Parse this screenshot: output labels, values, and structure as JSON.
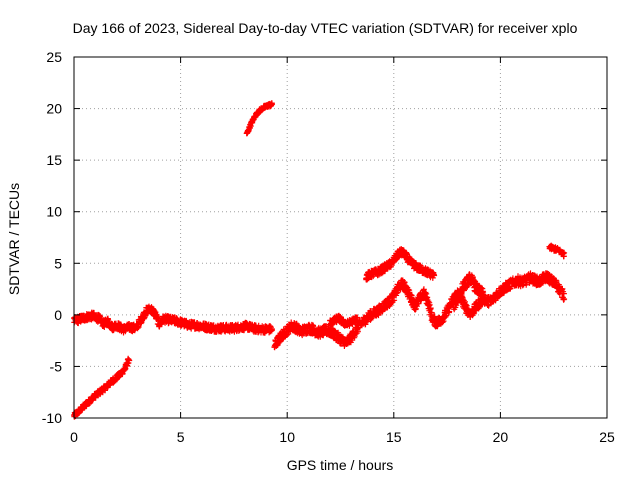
{
  "chart_data": {
    "type": "scatter",
    "title": "Day 166 of 2023, Sidereal Day-to-day VTEC variation (SDTVAR) for receiver xplo",
    "xlabel": "GPS time / hours",
    "ylabel": "SDTVAR / TECUs",
    "xlim": [
      0,
      25
    ],
    "ylim": [
      -10,
      25
    ],
    "xticks": [
      0,
      5,
      10,
      15,
      20,
      25
    ],
    "yticks": [
      -10,
      -5,
      0,
      5,
      10,
      15,
      20,
      25
    ],
    "grid": true,
    "marker": "+",
    "series": [
      {
        "name": "SDTVAR",
        "color": "#ff0000",
        "segments": [
          [
            [
              0.0,
              -9.8
            ],
            [
              0.3,
              -9.2
            ],
            [
              0.6,
              -8.6
            ],
            [
              0.9,
              -8.0
            ],
            [
              1.2,
              -7.5
            ],
            [
              1.5,
              -7.0
            ],
            [
              1.8,
              -6.4
            ],
            [
              2.1,
              -5.9
            ],
            [
              2.4,
              -5.2
            ],
            [
              2.6,
              -4.2
            ]
          ],
          [
            [
              0.0,
              -0.6
            ],
            [
              0.3,
              -0.4
            ],
            [
              0.6,
              -0.2
            ],
            [
              0.9,
              -0.1
            ],
            [
              1.2,
              -0.4
            ],
            [
              1.4,
              -0.9
            ],
            [
              1.6,
              -0.6
            ],
            [
              1.8,
              -1.2
            ],
            [
              2.0,
              -1.0
            ],
            [
              2.3,
              -1.4
            ],
            [
              2.6,
              -1.2
            ],
            [
              2.9,
              -1.3
            ],
            [
              3.1,
              -0.6
            ],
            [
              3.4,
              0.4
            ],
            [
              3.6,
              0.6
            ],
            [
              3.8,
              0.1
            ],
            [
              4.0,
              -0.9
            ],
            [
              4.2,
              -0.4
            ],
            [
              4.5,
              -0.5
            ],
            [
              4.8,
              -0.6
            ],
            [
              5.1,
              -0.8
            ],
            [
              5.4,
              -1.0
            ],
            [
              5.7,
              -1.0
            ],
            [
              6.0,
              -1.1
            ],
            [
              6.3,
              -1.2
            ],
            [
              6.6,
              -1.3
            ],
            [
              6.9,
              -1.3
            ],
            [
              7.2,
              -1.3
            ],
            [
              7.5,
              -1.3
            ],
            [
              7.8,
              -1.2
            ],
            [
              8.1,
              -1.1
            ],
            [
              8.4,
              -1.3
            ],
            [
              8.7,
              -1.4
            ],
            [
              9.0,
              -1.4
            ],
            [
              9.3,
              -1.4
            ]
          ],
          [
            [
              8.1,
              17.5
            ],
            [
              8.3,
              18.5
            ],
            [
              8.5,
              19.3
            ],
            [
              8.7,
              19.8
            ],
            [
              8.9,
              20.1
            ],
            [
              9.1,
              20.3
            ],
            [
              9.3,
              20.4
            ]
          ],
          [
            [
              9.4,
              -3.0
            ],
            [
              9.6,
              -2.4
            ],
            [
              9.8,
              -1.9
            ],
            [
              10.0,
              -1.5
            ],
            [
              10.2,
              -1.1
            ],
            [
              10.4,
              -1.2
            ],
            [
              10.6,
              -1.6
            ],
            [
              10.8,
              -1.5
            ],
            [
              11.0,
              -1.3
            ],
            [
              11.2,
              -1.4
            ],
            [
              11.4,
              -1.7
            ],
            [
              11.6,
              -1.7
            ],
            [
              11.8,
              -1.5
            ],
            [
              12.0,
              -1.6
            ],
            [
              12.2,
              -1.9
            ],
            [
              12.4,
              -2.2
            ],
            [
              12.6,
              -2.5
            ],
            [
              12.8,
              -2.7
            ],
            [
              13.0,
              -2.2
            ],
            [
              13.2,
              -1.6
            ],
            [
              13.4,
              -1.0
            ],
            [
              13.6,
              -0.6
            ],
            [
              13.8,
              -0.2
            ],
            [
              14.0,
              0.1
            ],
            [
              14.2,
              0.3
            ],
            [
              14.4,
              0.6
            ],
            [
              14.6,
              1.0
            ],
            [
              14.8,
              1.3
            ],
            [
              15.0,
              1.8
            ],
            [
              15.2,
              2.6
            ],
            [
              15.4,
              3.0
            ],
            [
              15.6,
              2.5
            ],
            [
              15.8,
              1.6
            ],
            [
              16.0,
              0.9
            ],
            [
              16.2,
              1.5
            ],
            [
              16.4,
              2.1
            ],
            [
              16.6,
              1.3
            ],
            [
              16.8,
              -0.3
            ],
            [
              17.0,
              -0.8
            ],
            [
              17.2,
              -0.5
            ],
            [
              17.4,
              0.0
            ],
            [
              17.6,
              0.7
            ],
            [
              17.8,
              1.6
            ],
            [
              18.0,
              2.1
            ],
            [
              18.2,
              1.4
            ],
            [
              18.4,
              0.6
            ],
            [
              18.6,
              0.1
            ],
            [
              18.8,
              0.6
            ],
            [
              19.0,
              1.1
            ],
            [
              19.2,
              1.6
            ],
            [
              19.4,
              1.3
            ],
            [
              19.6,
              1.4
            ],
            [
              19.8,
              1.9
            ],
            [
              20.0,
              2.3
            ],
            [
              20.2,
              2.6
            ],
            [
              20.4,
              2.9
            ],
            [
              20.6,
              3.1
            ],
            [
              20.8,
              3.3
            ],
            [
              21.0,
              3.2
            ],
            [
              21.2,
              3.3
            ],
            [
              21.4,
              3.6
            ],
            [
              21.6,
              3.4
            ],
            [
              21.8,
              3.2
            ],
            [
              22.0,
              3.5
            ],
            [
              22.2,
              3.7
            ],
            [
              22.4,
              3.3
            ],
            [
              22.6,
              3.0
            ],
            [
              22.8,
              2.4
            ],
            [
              23.0,
              1.8
            ]
          ],
          [
            [
              13.7,
              3.7
            ],
            [
              14.0,
              4.0
            ],
            [
              14.3,
              4.2
            ],
            [
              14.6,
              4.6
            ],
            [
              14.9,
              5.0
            ],
            [
              15.1,
              5.6
            ],
            [
              15.3,
              6.1
            ],
            [
              15.5,
              5.9
            ],
            [
              15.7,
              5.3
            ],
            [
              15.9,
              4.9
            ],
            [
              16.1,
              4.6
            ],
            [
              16.3,
              4.4
            ],
            [
              16.5,
              4.2
            ],
            [
              16.7,
              4.0
            ],
            [
              16.9,
              3.8
            ]
          ],
          [
            [
              12.0,
              -0.8
            ],
            [
              12.2,
              -0.6
            ],
            [
              12.4,
              -0.3
            ],
            [
              12.6,
              -0.7
            ],
            [
              12.8,
              -0.9
            ],
            [
              13.0,
              -0.7
            ],
            [
              13.3,
              -0.4
            ]
          ],
          [
            [
              17.8,
              0.8
            ],
            [
              18.0,
              1.7
            ],
            [
              18.2,
              2.6
            ],
            [
              18.4,
              3.1
            ],
            [
              18.6,
              3.6
            ],
            [
              18.8,
              2.8
            ],
            [
              19.0,
              2.3
            ],
            [
              19.2,
              2.0
            ]
          ],
          [
            [
              22.3,
              6.6
            ],
            [
              22.5,
              6.4
            ],
            [
              22.7,
              6.3
            ],
            [
              22.9,
              6.0
            ],
            [
              23.0,
              5.8
            ]
          ]
        ],
        "spread": [
          0.25,
          0.35,
          0.15,
          0.45,
          0.35,
          0.3,
          0.5,
          0.2
        ]
      }
    ]
  }
}
